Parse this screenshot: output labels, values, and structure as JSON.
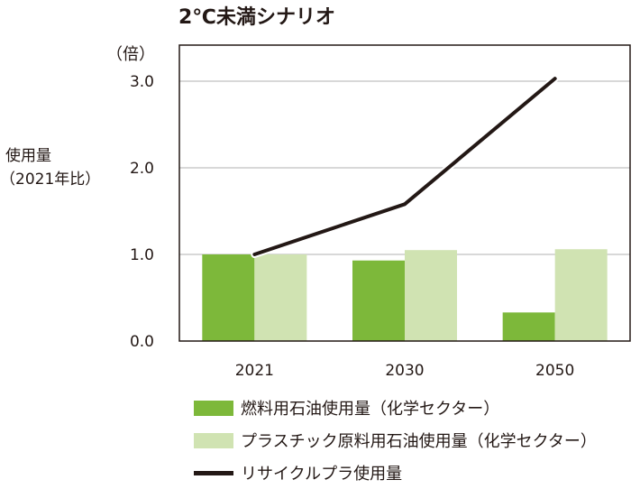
{
  "colors": {
    "fuel": "#7db83a",
    "plastic": "#d0e3b2",
    "recycle": "#231815",
    "grid": "#cccccc",
    "axis": "#231815"
  },
  "chart_data": {
    "type": "bar",
    "title": "2℃未満シナリオ",
    "ylabel_line1": "使用量",
    "ylabel_line2": "（2021年比）",
    "yunit": "（倍）",
    "categories": [
      "2021",
      "2030",
      "2050"
    ],
    "ylim": [
      0,
      3.0
    ],
    "yticks": [
      "0.0",
      "1.0",
      "2.0",
      "3.0"
    ],
    "grid": true,
    "legend_position": "bottom",
    "series": [
      {
        "name": "燃料用石油使用量（化学セクター）",
        "type": "bar",
        "values": [
          1.0,
          0.93,
          0.33
        ]
      },
      {
        "name": "プラスチック原料用石油使用量（化学セクター）",
        "type": "bar",
        "values": [
          1.0,
          1.05,
          1.06
        ]
      },
      {
        "name": "リサイクルプラ使用量",
        "type": "line",
        "values": [
          1.0,
          1.58,
          3.03
        ]
      }
    ]
  }
}
